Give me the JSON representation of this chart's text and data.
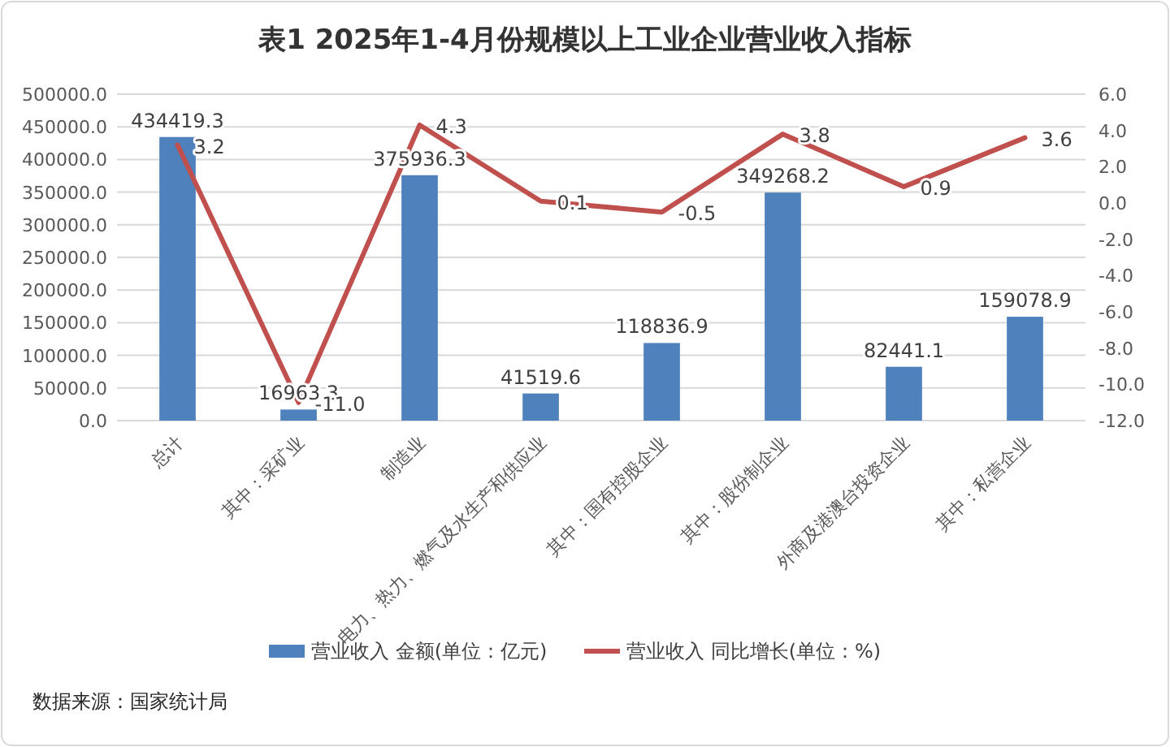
{
  "chart_data": {
    "type": "bar",
    "title": "表1 2025年1-4月份规模以上工业企业营业收入指标",
    "categories": [
      "总计",
      "其中：采矿业",
      "制造业",
      "电力、热力、燃气及水生产和供应业",
      "其中：国有控股企业",
      "其中：股份制企业",
      "外商及港澳台投资企业",
      "其中：私营企业"
    ],
    "series": [
      {
        "name": "营业收入 金额(单位：亿元)",
        "color": "#4f81bd",
        "values": [
          434419.3,
          16963.3,
          375936.3,
          41519.6,
          118836.9,
          349268.2,
          82441.1,
          159078.9
        ],
        "value_labels": [
          "434419.3",
          "16963.3",
          "375936.3",
          "41519.6",
          "118836.9",
          "349268.2",
          "82441.1",
          "159078.9"
        ]
      },
      {
        "name": "营业收入 同比增长(单位：%)",
        "type": "line",
        "axis": "y2",
        "color": "#c0504d",
        "marker": "none",
        "values": [
          3.2,
          -11.0,
          4.3,
          0.1,
          -0.5,
          3.8,
          0.9,
          3.6
        ],
        "value_labels": [
          "3.2",
          "-11.0",
          "4.3",
          "0.1",
          "-0.5",
          "3.8",
          "0.9",
          "3.6"
        ]
      }
    ],
    "ylim": [
      0,
      500000
    ],
    "yticks": [
      {
        "value": 0,
        "label": "0.0"
      },
      {
        "value": 50000,
        "label": "50000.0"
      },
      {
        "value": 100000,
        "label": "100000.0"
      },
      {
        "value": 150000,
        "label": "150000.0"
      },
      {
        "value": 200000,
        "label": "200000.0"
      },
      {
        "value": 250000,
        "label": "250000.0"
      },
      {
        "value": 300000,
        "label": "300000.0"
      },
      {
        "value": 350000,
        "label": "350000.0"
      },
      {
        "value": 400000,
        "label": "400000.0"
      },
      {
        "value": 450000,
        "label": "450000.0"
      },
      {
        "value": 500000,
        "label": "500000.0"
      }
    ],
    "y2lim": [
      -12,
      6
    ],
    "y2ticks": [
      {
        "value": -12,
        "label": "-12.0"
      },
      {
        "value": -10,
        "label": "-10.0"
      },
      {
        "value": -8,
        "label": "-8.0"
      },
      {
        "value": -6,
        "label": "-6.0"
      },
      {
        "value": -4,
        "label": "-4.0"
      },
      {
        "value": -2,
        "label": "-2.0"
      },
      {
        "value": 0,
        "label": "0.0"
      },
      {
        "value": 2,
        "label": "2.0"
      },
      {
        "value": 4,
        "label": "4.0"
      },
      {
        "value": 6,
        "label": "6.0"
      }
    ],
    "grid": "y",
    "legend": "bottom",
    "annotations": [
      "数据来源：国家统计局"
    ]
  }
}
